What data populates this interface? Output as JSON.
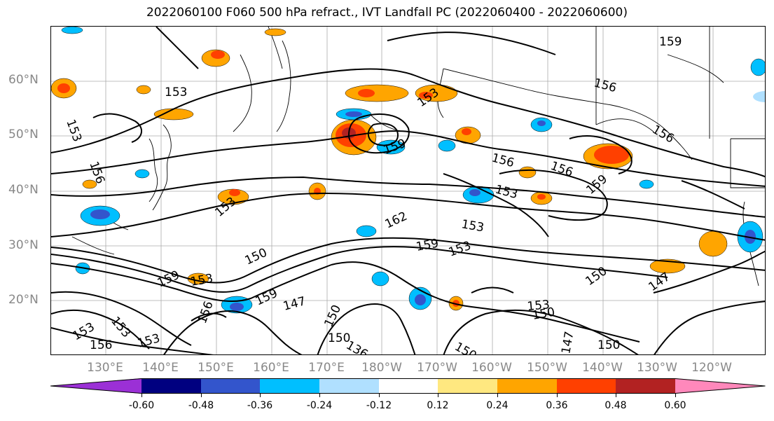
{
  "title": "2022060100 F060 500 hPa refract., IVT Landfall PC (2022060400 - 2022060600)",
  "lat_labels": [
    "60°N",
    "50°N",
    "40°N",
    "30°N",
    "20°N"
  ],
  "lon_labels": [
    "130°E",
    "140°E",
    "150°E",
    "160°E",
    "170°E",
    "180°W",
    "170°W",
    "160°W",
    "150°W",
    "140°W",
    "130°W",
    "120°W"
  ],
  "contour_labels": [
    "159",
    "156",
    "153",
    "153",
    "156",
    "156",
    "156",
    "156",
    "153",
    "159",
    "159",
    "153",
    "153",
    "162",
    "153",
    "159",
    "153",
    "150",
    "150",
    "159",
    "153",
    "156",
    "147",
    "159",
    "150",
    "153",
    "136",
    "150",
    "153",
    "153",
    "150",
    "147",
    "150",
    "150",
    "153",
    "156",
    "147"
  ],
  "colorbar": {
    "ticks": [
      "-0.60",
      "-0.48",
      "-0.36",
      "-0.24",
      "-0.12",
      "0.12",
      "0.24",
      "0.36",
      "0.48",
      "0.60"
    ],
    "colors": [
      "#9b30d6",
      "#000080",
      "#3355cc",
      "#00bfff",
      "#b0e0ff",
      "#ffffff",
      "#ffe880",
      "#ffa500",
      "#ff4000",
      "#b22222",
      "#ff88bb"
    ]
  },
  "fill_colors": {
    "light_blue": "#b0e0ff",
    "blue": "#00bfff",
    "mid_blue": "#3355cc",
    "navy": "#000080",
    "yellow": "#ffe880",
    "orange": "#ffa500",
    "red_orange": "#ff4000",
    "dark_red": "#b22222"
  }
}
